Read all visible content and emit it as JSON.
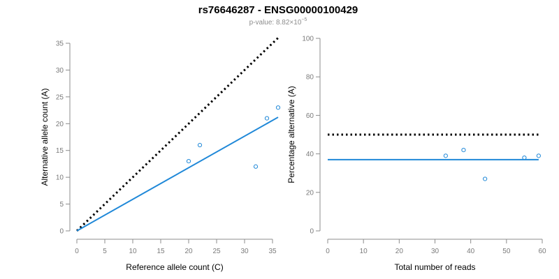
{
  "figure": {
    "title": "rs76646287 - ENSG00000100429",
    "subtitle_prefix": "p-value: 8.82×10",
    "subtitle_exponent": "−5"
  },
  "colors": {
    "points": "#1f88d8",
    "fit_line": "#1f88d8",
    "reference_line": "#000000",
    "axis": "#8c8c8c"
  },
  "chart_data": [
    {
      "type": "scatter",
      "xlabel": "Reference allele count (C)",
      "ylabel": "Alternative allele count (A)",
      "xlim": [
        0,
        35
      ],
      "ylim": [
        0,
        35
      ],
      "xticks": [
        0,
        5,
        10,
        15,
        20,
        25,
        30,
        35
      ],
      "yticks": [
        0,
        5,
        10,
        15,
        20,
        25,
        30,
        35
      ],
      "points": [
        {
          "x": 20,
          "y": 13
        },
        {
          "x": 22,
          "y": 16
        },
        {
          "x": 32,
          "y": 12
        },
        {
          "x": 34,
          "y": 21
        },
        {
          "x": 36,
          "y": 23
        }
      ],
      "fit_line": {
        "from": [
          0,
          0
        ],
        "to": [
          36,
          21.2
        ]
      },
      "reference_line": {
        "from": [
          0,
          0
        ],
        "to": [
          36,
          36
        ],
        "style": "dotted"
      }
    },
    {
      "type": "scatter",
      "xlabel": "Total number of reads",
      "ylabel": "Percentage alternative (A)",
      "xlim": [
        0,
        60
      ],
      "ylim": [
        0,
        100
      ],
      "xticks": [
        0,
        10,
        20,
        30,
        40,
        50,
        60
      ],
      "yticks": [
        0,
        20,
        40,
        60,
        80,
        100
      ],
      "points": [
        {
          "x": 33,
          "y": 39
        },
        {
          "x": 38,
          "y": 42
        },
        {
          "x": 44,
          "y": 27
        },
        {
          "x": 55,
          "y": 38
        },
        {
          "x": 59,
          "y": 39
        }
      ],
      "fit_line": {
        "from": [
          0,
          37
        ],
        "to": [
          59,
          37
        ]
      },
      "reference_line": {
        "from": [
          0,
          50
        ],
        "to": [
          59,
          50
        ],
        "style": "dotted"
      }
    }
  ]
}
